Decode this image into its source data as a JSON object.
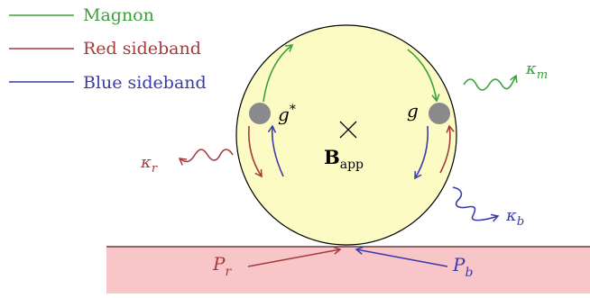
{
  "colors": {
    "magnon": "#3aa13a",
    "red": "#a53a3a",
    "blue": "#3a3aa8",
    "ring_fill": "#fdfbc4",
    "strip_fill": "#f8c6c9",
    "node": "#8a8a8a"
  },
  "legend": [
    {
      "label": "Magnon",
      "color": "#3aa13a"
    },
    {
      "label": "Red sideband",
      "color": "#a53a3a"
    },
    {
      "label": "Blue sideband",
      "color": "#3a3aa8"
    }
  ],
  "labels": {
    "g_star_base": "g",
    "g_star_sup": "*",
    "g": "g",
    "B_base": "B",
    "B_sub": "app",
    "kappa_m_base": "κ",
    "kappa_m_sub": "m",
    "kappa_r_base": "κ",
    "kappa_r_sub": "r",
    "kappa_b_base": "κ",
    "kappa_b_sub": "b",
    "P_r_base": "P",
    "P_r_sub": "r",
    "P_b_base": "P",
    "P_b_sub": "b"
  }
}
